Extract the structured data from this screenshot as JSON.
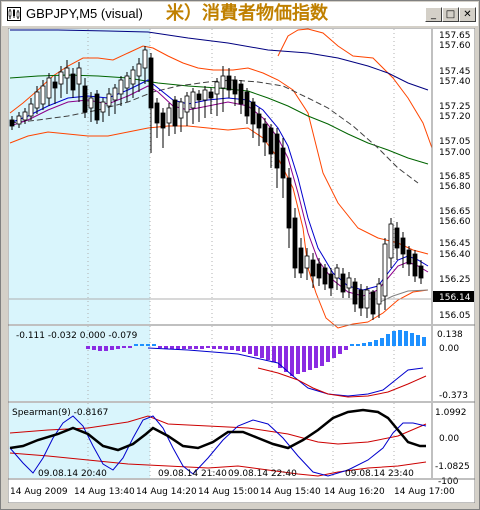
{
  "window": {
    "title": "GBPJPY,M5 (visual)",
    "banner_text": "米）消費者物価指数",
    "buttons": {
      "minimize": "_",
      "restore": "□",
      "close": "✕"
    }
  },
  "main_chart": {
    "symbol": "GBPJPY",
    "timeframe": "M5",
    "price_labels": [
      "157.65",
      "157.60",
      "157.45",
      "157.40",
      "157.25",
      "157.20",
      "157.05",
      "157.00",
      "156.85",
      "156.80",
      "156.65",
      "156.60",
      "156.45",
      "156.40",
      "156.25",
      "156.14",
      "156.05"
    ],
    "current_price": "156.14",
    "colors": {
      "bull": "#ffffff",
      "bear": "#000000",
      "highlight": "#d9f5fc",
      "upper_band": "#ff4500",
      "lower_band": "#0000cd",
      "ma_green": "#006400",
      "ma_navy": "#000080"
    }
  },
  "histogram_panel": {
    "header": "-0.111 -0.032 0.000 -0.079",
    "scale_labels": [
      "0.138",
      "0.00",
      "-0.373"
    ]
  },
  "spearman_panel": {
    "header": "Spearman(9) -0.8167",
    "scale_labels": [
      "1.0992",
      "0.00",
      "-1.0825",
      "-100"
    ]
  },
  "time_axis": {
    "top_labels": [
      "09.08.14 20:40",
      "09.08.14 21:40",
      "09.08.14 22:40",
      "09.08.14 23:40"
    ],
    "bottom_labels": [
      "14 Aug 2009",
      "14 Aug 13:40",
      "14 Aug 14:20",
      "14 Aug 15:00",
      "14 Aug 15:40",
      "14 Aug 16:20",
      "14 Aug 17:00"
    ]
  }
}
